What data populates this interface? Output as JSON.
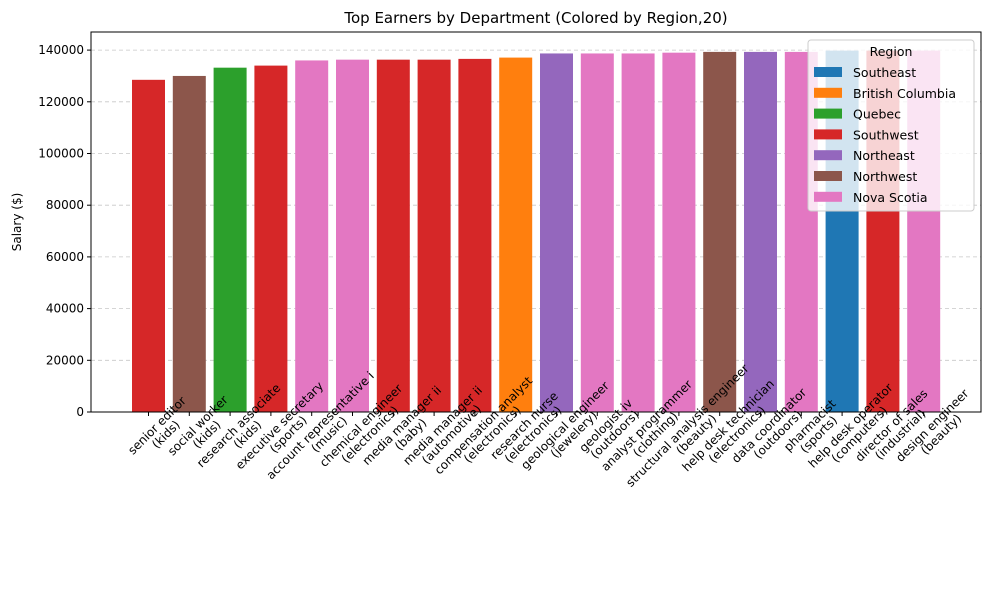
{
  "chart_data": {
    "type": "bar",
    "title": "Top Earners by Department (Colored by Region,20)",
    "xlabel": "",
    "ylabel": "Salary ($)",
    "ylim": [
      0,
      147000
    ],
    "yticks": [
      0,
      20000,
      40000,
      60000,
      80000,
      100000,
      120000,
      140000
    ],
    "grid": "y-dashed",
    "legend_title": "Region",
    "legend_position": "top-right",
    "colors": {
      "Southeast": "#1f77b4",
      "British Columbia": "#ff7f0e",
      "Quebec": "#2ca02c",
      "Southwest": "#d62728",
      "Northeast": "#9467bd",
      "Northwest": "#8c564b",
      "Nova Scotia": "#e377c2"
    },
    "legend": [
      "Southeast",
      "British Columbia",
      "Quebec",
      "Southwest",
      "Northeast",
      "Northwest",
      "Nova Scotia"
    ],
    "bars": [
      {
        "label": [
          "senior editor",
          "(kids)"
        ],
        "value": 128500,
        "region": "Southwest"
      },
      {
        "label": [
          "social worker",
          "(kids)"
        ],
        "value": 130000,
        "region": "Northwest"
      },
      {
        "label": [
          "research associate",
          "(kids)"
        ],
        "value": 133200,
        "region": "Quebec"
      },
      {
        "label": [
          "executive secretary",
          "(sports)"
        ],
        "value": 134000,
        "region": "Southwest"
      },
      {
        "label": [
          "account representative i",
          "(music)"
        ],
        "value": 136000,
        "region": "Nova Scotia"
      },
      {
        "label": [
          "chemical engineer",
          "(electronics)"
        ],
        "value": 136300,
        "region": "Nova Scotia"
      },
      {
        "label": [
          "media manager ii",
          "(baby)"
        ],
        "value": 136300,
        "region": "Southwest"
      },
      {
        "label": [
          "media manager ii",
          "(automotive)"
        ],
        "value": 136300,
        "region": "Southwest"
      },
      {
        "label": [
          "compensation analyst",
          "(electronics)"
        ],
        "value": 136600,
        "region": "Southwest"
      },
      {
        "label": [
          "research nurse",
          "(electronics)"
        ],
        "value": 137100,
        "region": "British Columbia"
      },
      {
        "label": [
          "geological engineer",
          "(jewelery)"
        ],
        "value": 138700,
        "region": "Northeast"
      },
      {
        "label": [
          "geologist iv",
          "(outdoors)"
        ],
        "value": 138700,
        "region": "Nova Scotia"
      },
      {
        "label": [
          "analyst programmer",
          "(clothing)"
        ],
        "value": 138700,
        "region": "Nova Scotia"
      },
      {
        "label": [
          "structural analysis engineer",
          "(beauty)"
        ],
        "value": 139000,
        "region": "Nova Scotia"
      },
      {
        "label": [
          "help desk technician",
          "(electronics)"
        ],
        "value": 139300,
        "region": "Northwest"
      },
      {
        "label": [
          "data coordinator",
          "(outdoors)"
        ],
        "value": 139300,
        "region": "Northeast"
      },
      {
        "label": [
          "pharmacist",
          "(sports)"
        ],
        "value": 139300,
        "region": "Nova Scotia"
      },
      {
        "label": [
          "help desk operator",
          "(computers)"
        ],
        "value": 139800,
        "region": "Southeast"
      },
      {
        "label": [
          "director of sales",
          "(industrial)"
        ],
        "value": 139800,
        "region": "Southwest"
      },
      {
        "label": [
          "design engineer",
          "(beauty)"
        ],
        "value": 139800,
        "region": "Nova Scotia"
      }
    ]
  }
}
